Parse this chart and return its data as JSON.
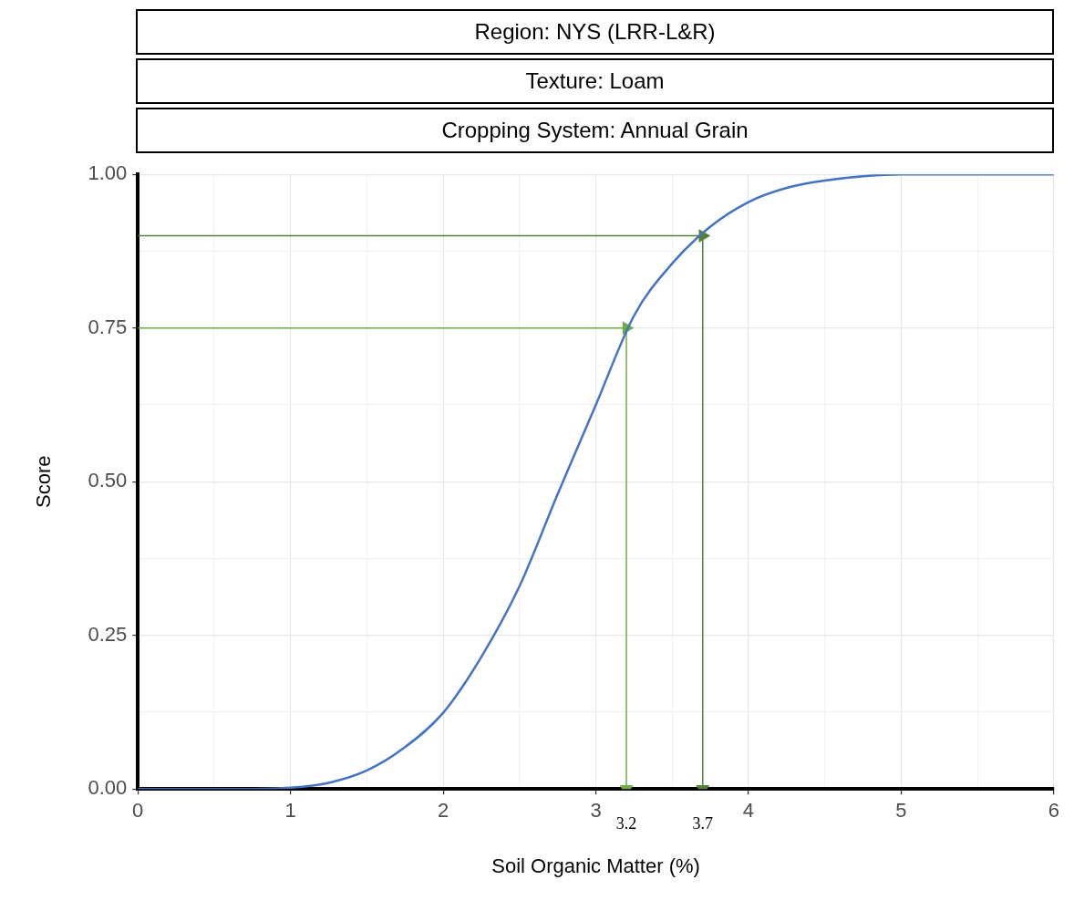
{
  "chart_data": {
    "type": "line",
    "title": "Region: NYS (LRR-L&R)",
    "subtitle": "Texture: Loam",
    "xlabel": "Soil Organic Matter (%)",
    "ylabel": "Score",
    "x": [
      0,
      0.5,
      0.75,
      1,
      1.25,
      1.5,
      1.75,
      2,
      2.25,
      2.5,
      2.75,
      3,
      3.25,
      3.5,
      3.75,
      4,
      4.25,
      4.5,
      5,
      6
    ],
    "series": [
      {
        "color": "#4472c4",
        "values": [
          0,
          0,
          0,
          0.002,
          0.01,
          0.03,
          0.068,
          0.124,
          0.215,
          0.33,
          0.48,
          0.625,
          0.77,
          0.855,
          0.915,
          0.955,
          0.978,
          0.99,
          1,
          1
        ]
      },
      {
        "color": "#70ad47",
        "x": [
          0,
          3.2,
          3.2
        ],
        "values": [
          0.75,
          0.75,
          0
        ],
        "marker": "triangle"
      },
      {
        "color": "#548235",
        "x": [
          0,
          3.7,
          3.7
        ],
        "values": [
          0.9,
          0.9,
          0
        ],
        "marker": "triangle"
      }
    ],
    "annotations": [
      "Cropping System: Annual Grain",
      {
        "text": "3.2",
        "x": 3.2,
        "y": 0
      },
      {
        "text": "3.7",
        "x": 3.7,
        "y": 0
      }
    ],
    "xlim": [
      0,
      6
    ],
    "xticks": [
      0,
      {
        "value": 0.5,
        "label": null
      },
      1,
      {
        "value": 1.5,
        "label": null
      },
      2,
      {
        "value": 2.5,
        "label": null
      },
      3,
      {
        "value": 3.5,
        "label": null
      },
      4,
      {
        "value": 4.5,
        "label": null
      },
      5,
      {
        "value": 5.5,
        "label": null
      },
      6
    ],
    "ylim": [
      0,
      1
    ],
    "yticks": [
      {
        "value": 0,
        "label": "0.00"
      },
      {
        "value": 0.125,
        "label": null
      },
      {
        "value": 0.25,
        "label": "0.25"
      },
      {
        "value": 0.375,
        "label": null
      },
      {
        "value": 0.5,
        "label": "0.50"
      },
      {
        "value": 0.625,
        "label": null
      },
      {
        "value": 0.75,
        "label": "0.75"
      },
      {
        "value": 0.875,
        "label": null
      },
      {
        "value": 1,
        "label": "1.00"
      }
    ],
    "grid": true,
    "legend": false,
    "marker": "none",
    "line_style": "solid"
  }
}
